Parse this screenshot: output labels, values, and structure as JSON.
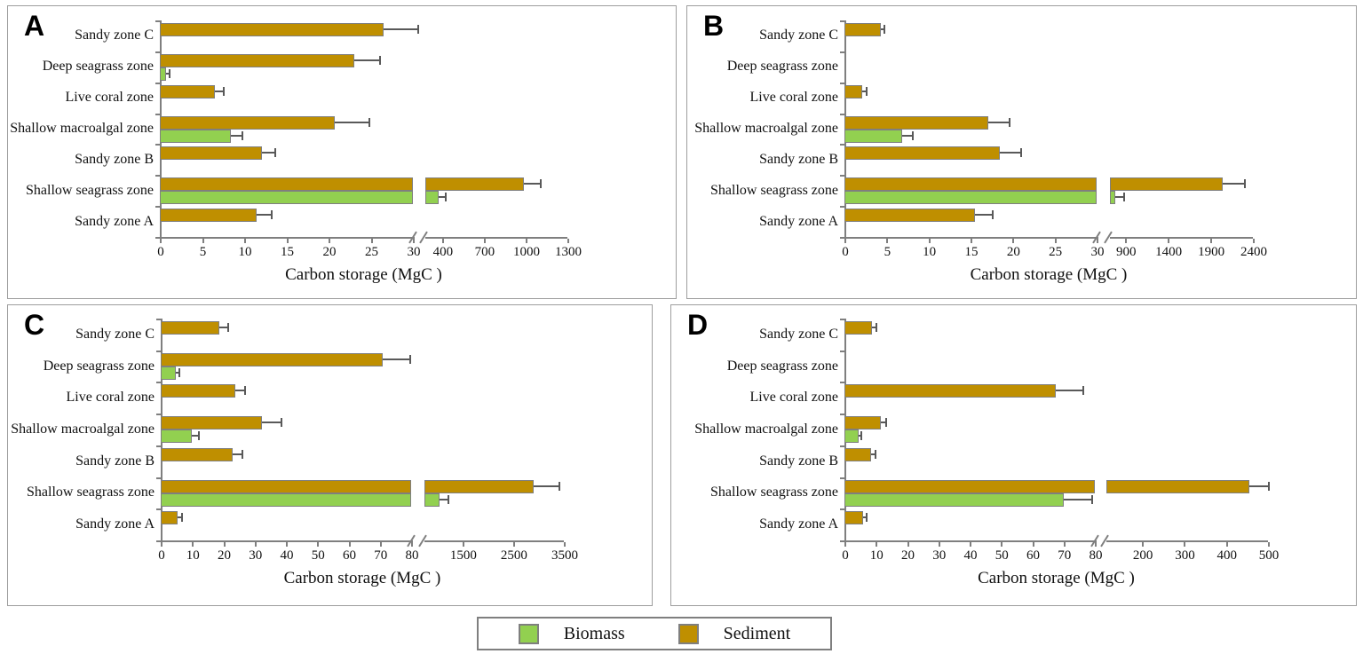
{
  "figure": {
    "xlabel": "Carbon storage (MgC )",
    "categories": [
      "Sandy zone C",
      "Deep seagrass zone",
      "Live coral zone",
      "Shallow macroalgal zone",
      "Sandy zone B",
      "Shallow seagrass zone",
      "Sandy zone A"
    ],
    "colors": {
      "biomass": "#92D050",
      "sediment": "#BF8F00",
      "bar_border": "#7F7F7F",
      "error_bar": "#595959",
      "axis": "#7F7F7F",
      "panel_border": "#9E9E9E"
    },
    "legend": {
      "position": "bottom-center",
      "items": [
        {
          "label": "Biomass",
          "color": "#92D050"
        },
        {
          "label": "Sediment",
          "color": "#BF8F00"
        }
      ]
    }
  },
  "chart_data": [
    {
      "panel_label": "A",
      "type": "bar",
      "orientation": "horizontal",
      "xlabel": "Carbon storage (MgC )",
      "categories": [
        "Sandy zone C",
        "Deep seagrass zone",
        "Live coral zone",
        "Shallow macroalgal zone",
        "Sandy zone B",
        "Shallow seagrass zone",
        "Sandy zone A"
      ],
      "series": [
        {
          "name": "Sediment",
          "color": "#BF8F00",
          "values": [
            26.5,
            23,
            6.5,
            20.7,
            12.1,
            990,
            11.5
          ],
          "errors": [
            4,
            3,
            1,
            4,
            1.5,
            115,
            1.7
          ]
        },
        {
          "name": "Biomass",
          "color": "#92D050",
          "values": [
            0,
            0.7,
            0,
            8.4,
            0,
            375,
            0
          ],
          "errors": [
            0,
            0.35,
            0,
            1.3,
            0,
            45,
            0
          ]
        }
      ],
      "axis_break": true,
      "segments": [
        {
          "min": 0,
          "max": 30,
          "ticks": [
            0,
            5,
            10,
            15,
            20,
            25,
            30
          ]
        },
        {
          "min": 280,
          "max": 1300,
          "ticks": [
            400,
            700,
            1000,
            1300
          ]
        }
      ]
    },
    {
      "panel_label": "B",
      "type": "bar",
      "orientation": "horizontal",
      "xlabel": "Carbon storage (MgC )",
      "categories": [
        "Sandy zone C",
        "Deep seagrass zone",
        "Live coral zone",
        "Shallow macroalgal zone",
        "Sandy zone B",
        "Shallow seagrass zone",
        "Sandy zone A"
      ],
      "series": [
        {
          "name": "Sediment",
          "color": "#BF8F00",
          "values": [
            4.3,
            0,
            2.1,
            17.1,
            18.5,
            2050,
            15.5
          ],
          "errors": [
            0.3,
            0,
            0.4,
            2.4,
            2.4,
            250,
            2
          ]
        },
        {
          "name": "Biomass",
          "color": "#92D050",
          "values": [
            0,
            0,
            0,
            6.9,
            0,
            785,
            0
          ],
          "errors": [
            0,
            0,
            0,
            1.1,
            0,
            95,
            0
          ]
        }
      ],
      "axis_break": true,
      "segments": [
        {
          "min": 0,
          "max": 30,
          "ticks": [
            0,
            5,
            10,
            15,
            20,
            25,
            30
          ]
        },
        {
          "min": 720,
          "max": 2400,
          "ticks": [
            900,
            1400,
            1900,
            2400
          ]
        }
      ]
    },
    {
      "panel_label": "C",
      "type": "bar",
      "orientation": "horizontal",
      "xlabel": "Carbon storage (MgC )",
      "categories": [
        "Sandy zone C",
        "Deep seagrass zone",
        "Live coral zone",
        "Shallow macroalgal zone",
        "Sandy zone B",
        "Shallow seagrass zone",
        "Sandy zone A"
      ],
      "series": [
        {
          "name": "Sediment",
          "color": "#BF8F00",
          "values": [
            18.6,
            71,
            23.8,
            32.4,
            23,
            2900,
            5.4
          ],
          "errors": [
            2.6,
            8.5,
            3,
            5.8,
            2.7,
            500,
            1
          ]
        },
        {
          "name": "Biomass",
          "color": "#92D050",
          "values": [
            0,
            4.9,
            0,
            10,
            0,
            1050,
            0
          ],
          "errors": [
            0,
            0.7,
            0,
            1.8,
            0,
            150,
            0
          ]
        }
      ],
      "axis_break": true,
      "segments": [
        {
          "min": 0,
          "max": 80,
          "ticks": [
            0,
            10,
            20,
            30,
            40,
            50,
            60,
            70,
            80
          ]
        },
        {
          "min": 750,
          "max": 3500,
          "ticks": [
            1500,
            2500,
            3500
          ]
        }
      ]
    },
    {
      "panel_label": "D",
      "type": "bar",
      "orientation": "horizontal",
      "xlabel": "Carbon storage (MgC )",
      "categories": [
        "Sandy zone C",
        "Deep seagrass zone",
        "Live coral zone",
        "Shallow macroalgal zone",
        "Sandy zone B",
        "Shallow seagrass zone",
        "Sandy zone A"
      ],
      "series": [
        {
          "name": "Sediment",
          "color": "#BF8F00",
          "values": [
            8.7,
            0,
            67.5,
            11.6,
            8.6,
            455,
            6
          ],
          "errors": [
            1.2,
            0,
            8.4,
            1.5,
            1,
            45,
            0.8
          ]
        },
        {
          "name": "Biomass",
          "color": "#92D050",
          "values": [
            0,
            0,
            0,
            4.4,
            0,
            70,
            0
          ],
          "errors": [
            0,
            0,
            0,
            0.7,
            0,
            8.8,
            0
          ]
        }
      ],
      "axis_break": true,
      "segments": [
        {
          "min": 0,
          "max": 80,
          "ticks": [
            0,
            10,
            20,
            30,
            40,
            50,
            60,
            70,
            80
          ]
        },
        {
          "min": 115,
          "max": 500,
          "ticks": [
            200,
            300,
            400,
            500
          ]
        }
      ]
    }
  ]
}
